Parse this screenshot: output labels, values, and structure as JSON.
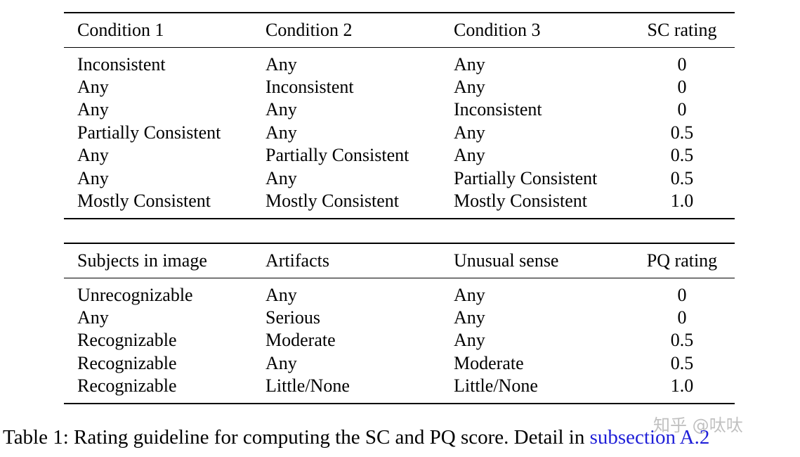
{
  "table_sc": {
    "header": [
      "Condition 1",
      "Condition 2",
      "Condition 3",
      "SC rating"
    ],
    "rows": [
      [
        "Inconsistent",
        "Any",
        "Any",
        "0"
      ],
      [
        "Any",
        "Inconsistent",
        "Any",
        "0"
      ],
      [
        "Any",
        "Any",
        "Inconsistent",
        "0"
      ],
      [
        "Partially Consistent",
        "Any",
        "Any",
        "0.5"
      ],
      [
        "Any",
        "Partially Consistent",
        "Any",
        "0.5"
      ],
      [
        "Any",
        "Any",
        "Partially Consistent",
        "0.5"
      ],
      [
        "Mostly Consistent",
        "Mostly Consistent",
        "Mostly Consistent",
        "1.0"
      ]
    ]
  },
  "table_pq": {
    "header": [
      "Subjects in image",
      "Artifacts",
      "Unusual sense",
      "PQ rating"
    ],
    "rows": [
      [
        "Unrecognizable",
        "Any",
        "Any",
        "0"
      ],
      [
        "Any",
        "Serious",
        "Any",
        "0"
      ],
      [
        "Recognizable",
        "Moderate",
        "Any",
        "0.5"
      ],
      [
        "Recognizable",
        "Any",
        "Moderate",
        "0.5"
      ],
      [
        "Recognizable",
        "Little/None",
        "Little/None",
        "1.0"
      ]
    ]
  },
  "caption": {
    "text": "Table 1: Rating guideline for computing the SC and PQ score. Detail in ",
    "link": "subsection A.2"
  },
  "watermark": "知乎 @呔呔",
  "colors": {
    "link": "#1f1fd8"
  }
}
